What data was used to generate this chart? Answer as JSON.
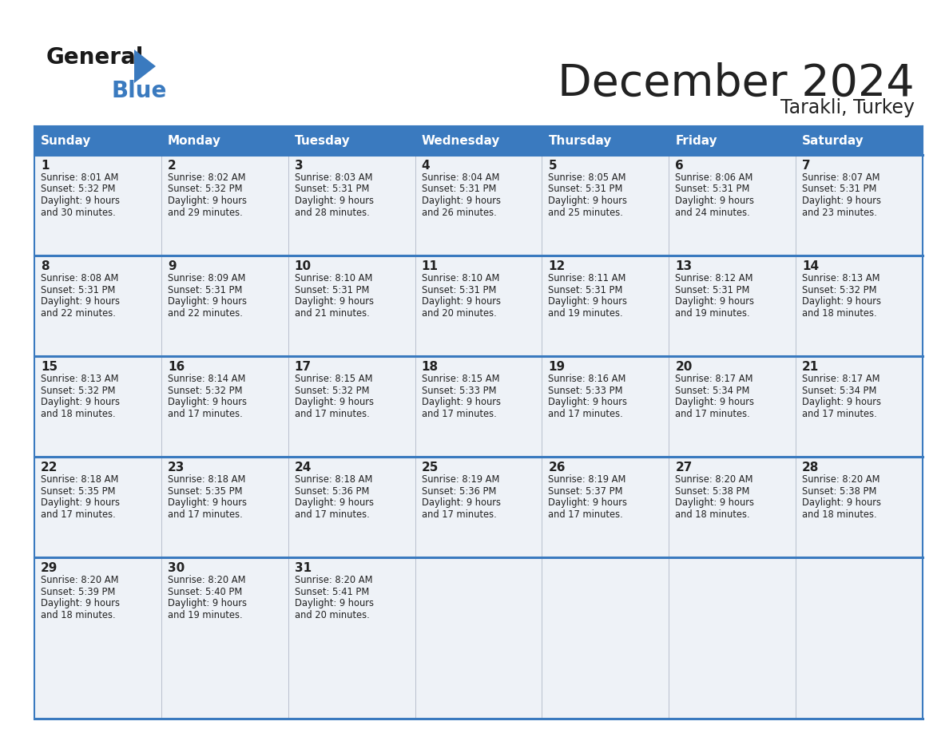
{
  "title": "December 2024",
  "subtitle": "Tarakli, Turkey",
  "days_of_week": [
    "Sunday",
    "Monday",
    "Tuesday",
    "Wednesday",
    "Thursday",
    "Friday",
    "Saturday"
  ],
  "header_bg": "#3a7abf",
  "header_text": "#ffffff",
  "row_bg": "#eef2f7",
  "border_color": "#3a7abf",
  "text_color": "#222222",
  "calendar_data": [
    [
      {
        "day": 1,
        "sunrise": "8:01 AM",
        "sunset": "5:32 PM",
        "daylight": "9 hours",
        "daylight2": "and 30 minutes."
      },
      {
        "day": 2,
        "sunrise": "8:02 AM",
        "sunset": "5:32 PM",
        "daylight": "9 hours",
        "daylight2": "and 29 minutes."
      },
      {
        "day": 3,
        "sunrise": "8:03 AM",
        "sunset": "5:31 PM",
        "daylight": "9 hours",
        "daylight2": "and 28 minutes."
      },
      {
        "day": 4,
        "sunrise": "8:04 AM",
        "sunset": "5:31 PM",
        "daylight": "9 hours",
        "daylight2": "and 26 minutes."
      },
      {
        "day": 5,
        "sunrise": "8:05 AM",
        "sunset": "5:31 PM",
        "daylight": "9 hours",
        "daylight2": "and 25 minutes."
      },
      {
        "day": 6,
        "sunrise": "8:06 AM",
        "sunset": "5:31 PM",
        "daylight": "9 hours",
        "daylight2": "and 24 minutes."
      },
      {
        "day": 7,
        "sunrise": "8:07 AM",
        "sunset": "5:31 PM",
        "daylight": "9 hours",
        "daylight2": "and 23 minutes."
      }
    ],
    [
      {
        "day": 8,
        "sunrise": "8:08 AM",
        "sunset": "5:31 PM",
        "daylight": "9 hours",
        "daylight2": "and 22 minutes."
      },
      {
        "day": 9,
        "sunrise": "8:09 AM",
        "sunset": "5:31 PM",
        "daylight": "9 hours",
        "daylight2": "and 22 minutes."
      },
      {
        "day": 10,
        "sunrise": "8:10 AM",
        "sunset": "5:31 PM",
        "daylight": "9 hours",
        "daylight2": "and 21 minutes."
      },
      {
        "day": 11,
        "sunrise": "8:10 AM",
        "sunset": "5:31 PM",
        "daylight": "9 hours",
        "daylight2": "and 20 minutes."
      },
      {
        "day": 12,
        "sunrise": "8:11 AM",
        "sunset": "5:31 PM",
        "daylight": "9 hours",
        "daylight2": "and 19 minutes."
      },
      {
        "day": 13,
        "sunrise": "8:12 AM",
        "sunset": "5:31 PM",
        "daylight": "9 hours",
        "daylight2": "and 19 minutes."
      },
      {
        "day": 14,
        "sunrise": "8:13 AM",
        "sunset": "5:32 PM",
        "daylight": "9 hours",
        "daylight2": "and 18 minutes."
      }
    ],
    [
      {
        "day": 15,
        "sunrise": "8:13 AM",
        "sunset": "5:32 PM",
        "daylight": "9 hours",
        "daylight2": "and 18 minutes."
      },
      {
        "day": 16,
        "sunrise": "8:14 AM",
        "sunset": "5:32 PM",
        "daylight": "9 hours",
        "daylight2": "and 17 minutes."
      },
      {
        "day": 17,
        "sunrise": "8:15 AM",
        "sunset": "5:32 PM",
        "daylight": "9 hours",
        "daylight2": "and 17 minutes."
      },
      {
        "day": 18,
        "sunrise": "8:15 AM",
        "sunset": "5:33 PM",
        "daylight": "9 hours",
        "daylight2": "and 17 minutes."
      },
      {
        "day": 19,
        "sunrise": "8:16 AM",
        "sunset": "5:33 PM",
        "daylight": "9 hours",
        "daylight2": "and 17 minutes."
      },
      {
        "day": 20,
        "sunrise": "8:17 AM",
        "sunset": "5:34 PM",
        "daylight": "9 hours",
        "daylight2": "and 17 minutes."
      },
      {
        "day": 21,
        "sunrise": "8:17 AM",
        "sunset": "5:34 PM",
        "daylight": "9 hours",
        "daylight2": "and 17 minutes."
      }
    ],
    [
      {
        "day": 22,
        "sunrise": "8:18 AM",
        "sunset": "5:35 PM",
        "daylight": "9 hours",
        "daylight2": "and 17 minutes."
      },
      {
        "day": 23,
        "sunrise": "8:18 AM",
        "sunset": "5:35 PM",
        "daylight": "9 hours",
        "daylight2": "and 17 minutes."
      },
      {
        "day": 24,
        "sunrise": "8:18 AM",
        "sunset": "5:36 PM",
        "daylight": "9 hours",
        "daylight2": "and 17 minutes."
      },
      {
        "day": 25,
        "sunrise": "8:19 AM",
        "sunset": "5:36 PM",
        "daylight": "9 hours",
        "daylight2": "and 17 minutes."
      },
      {
        "day": 26,
        "sunrise": "8:19 AM",
        "sunset": "5:37 PM",
        "daylight": "9 hours",
        "daylight2": "and 17 minutes."
      },
      {
        "day": 27,
        "sunrise": "8:20 AM",
        "sunset": "5:38 PM",
        "daylight": "9 hours",
        "daylight2": "and 18 minutes."
      },
      {
        "day": 28,
        "sunrise": "8:20 AM",
        "sunset": "5:38 PM",
        "daylight": "9 hours",
        "daylight2": "and 18 minutes."
      }
    ],
    [
      {
        "day": 29,
        "sunrise": "8:20 AM",
        "sunset": "5:39 PM",
        "daylight": "9 hours",
        "daylight2": "and 18 minutes."
      },
      {
        "day": 30,
        "sunrise": "8:20 AM",
        "sunset": "5:40 PM",
        "daylight": "9 hours",
        "daylight2": "and 19 minutes."
      },
      {
        "day": 31,
        "sunrise": "8:20 AM",
        "sunset": "5:41 PM",
        "daylight": "9 hours",
        "daylight2": "and 20 minutes."
      },
      null,
      null,
      null,
      null
    ]
  ]
}
